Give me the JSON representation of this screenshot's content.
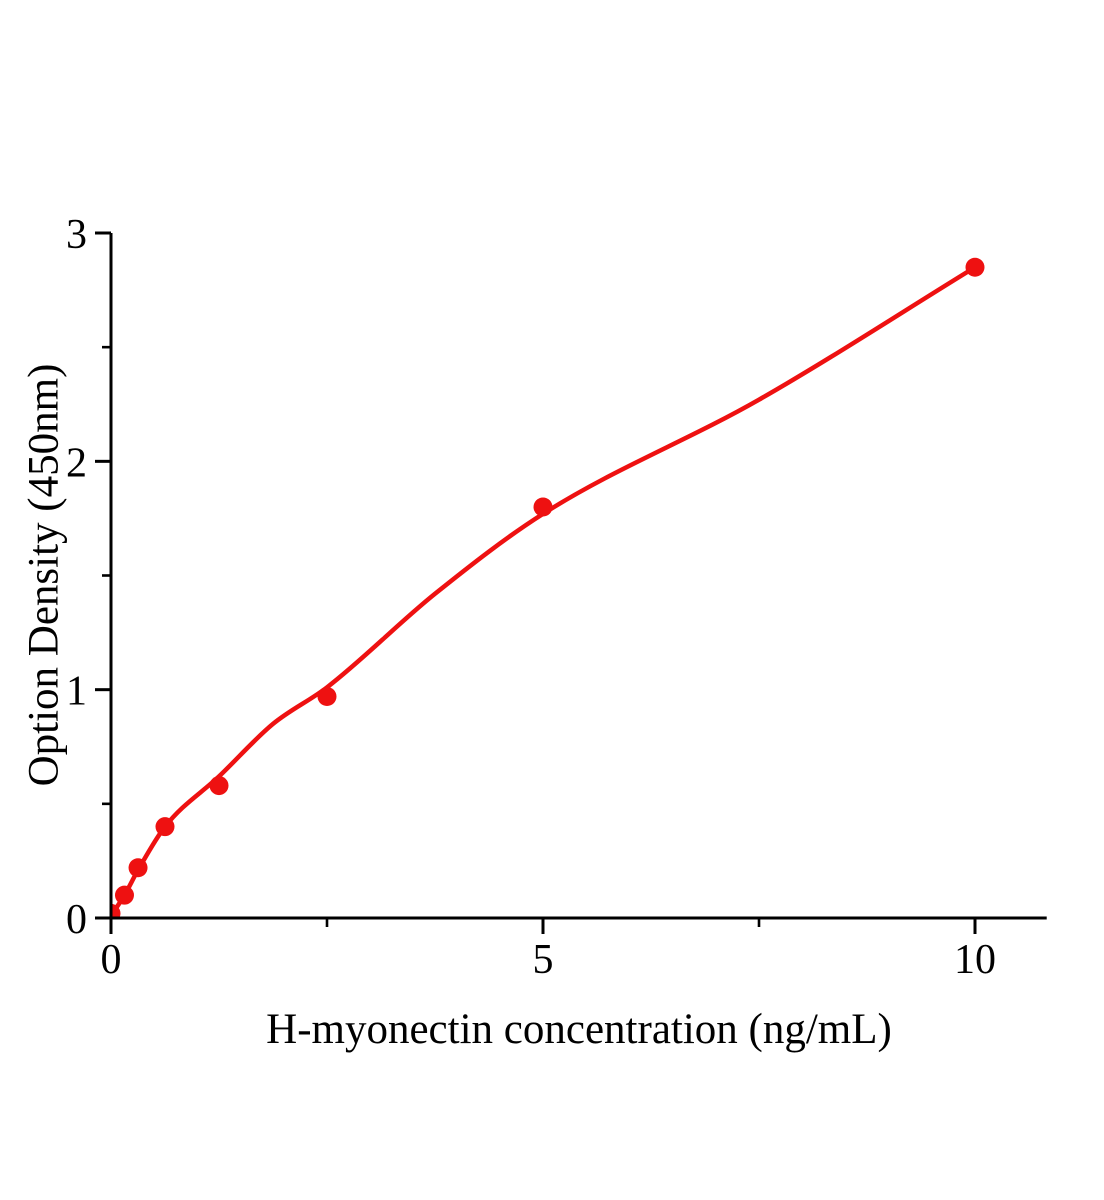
{
  "chart_data": {
    "type": "scatter",
    "xlabel": "H-myonectin concentration (ng/mL)",
    "ylabel": "Option Density (450nm)",
    "series": [
      {
        "name": "standard-curve-points",
        "marker": "circle",
        "color": "#EE1111",
        "x": [
          0,
          0.156,
          0.313,
          0.625,
          1.25,
          2.5,
          5,
          10
        ],
        "y": [
          0.02,
          0.1,
          0.22,
          0.4,
          0.58,
          0.97,
          1.8,
          2.85
        ]
      }
    ],
    "fit_curve": {
      "color": "#EE1111",
      "points": [
        [
          0,
          0.01
        ],
        [
          0.156,
          0.1
        ],
        [
          0.313,
          0.21
        ],
        [
          0.625,
          0.4
        ],
        [
          1.25,
          0.62
        ],
        [
          1.875,
          0.85
        ],
        [
          2.5,
          1.01
        ],
        [
          3.75,
          1.42
        ],
        [
          5,
          1.77
        ],
        [
          7.5,
          2.27
        ],
        [
          10,
          2.85
        ]
      ]
    },
    "axes": {
      "xlim": [
        0,
        10.83
      ],
      "ylim": [
        0,
        3
      ],
      "x_ticks_major": [
        0,
        5,
        10
      ],
      "x_tick_labels": [
        "0",
        "5",
        "10"
      ],
      "x_ticks_minor": [
        2.5,
        7.5
      ],
      "y_ticks_major": [
        0,
        1,
        2,
        3
      ],
      "y_tick_labels": [
        "0",
        "1",
        "2",
        "3"
      ],
      "y_ticks_minor": [
        0.5,
        1.5,
        2.5
      ],
      "grid": false,
      "axis_color": "#000000",
      "tick_label_color": "#000000"
    },
    "legend": "none",
    "background": "#FFFFFF"
  }
}
